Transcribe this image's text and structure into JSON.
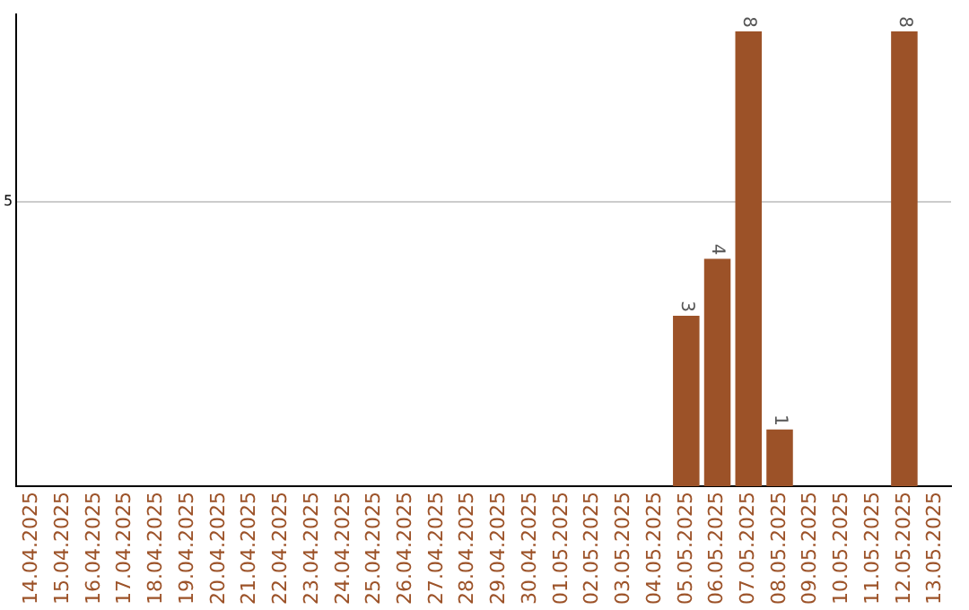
{
  "chart_data": {
    "type": "bar",
    "categories": [
      "14.04.2025",
      "15.04.2025",
      "16.04.2025",
      "17.04.2025",
      "18.04.2025",
      "19.04.2025",
      "20.04.2025",
      "21.04.2025",
      "22.04.2025",
      "23.04.2025",
      "24.04.2025",
      "25.04.2025",
      "26.04.2025",
      "27.04.2025",
      "28.04.2025",
      "29.04.2025",
      "30.04.2025",
      "01.05.2025",
      "02.05.2025",
      "03.05.2025",
      "04.05.2025",
      "05.05.2025",
      "06.05.2025",
      "07.05.2025",
      "08.05.2025",
      "09.05.2025",
      "10.05.2025",
      "11.05.2025",
      "12.05.2025",
      "13.05.2025"
    ],
    "values": [
      null,
      null,
      null,
      null,
      null,
      null,
      null,
      null,
      null,
      null,
      null,
      null,
      null,
      null,
      null,
      null,
      null,
      null,
      null,
      null,
      null,
      3,
      4,
      8,
      1,
      null,
      null,
      null,
      8,
      null
    ],
    "color": "#9c5228",
    "ylim": [
      0,
      8.3
    ],
    "yticks": [
      5
    ],
    "grid": "y",
    "legend": false,
    "data_labels": true
  }
}
